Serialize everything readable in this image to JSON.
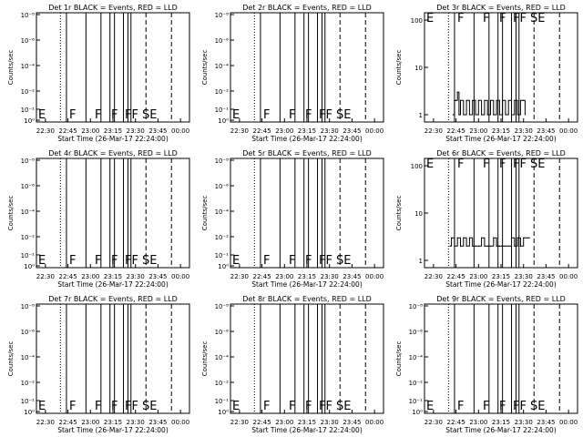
{
  "chart_data": [
    {
      "type": "line",
      "title": "Det 1r BLACK = Events, RED = LLD",
      "xlabel": "Start Time (26-Mar-17 22:24:00)",
      "ylabel": "Counts/sec",
      "yscale": "log",
      "ylim": [
        1,
        1e-08
      ],
      "ytick_labels": [
        "10⁻⁸",
        "10⁻⁶",
        "10⁻⁴",
        "10⁻²",
        "10⁻¹",
        "10⁰"
      ],
      "xtick_labels": [
        "22:30",
        "22:45",
        "23:00",
        "23:15",
        "23:30",
        "23:45",
        "00:00"
      ],
      "xlim": [
        "22:24",
        "00:06"
      ],
      "flag_labels": [
        "E",
        "F",
        "F",
        "F",
        "FF",
        "SE"
      ],
      "series": []
    },
    {
      "type": "line",
      "title": "Det 2r BLACK = Events, RED = LLD",
      "xlabel": "Start Time (26-Mar-17 22:24:00)",
      "ylabel": "Counts/sec",
      "yscale": "log",
      "ylim": [
        1,
        1e-08
      ],
      "ytick_labels": [
        "10⁻⁸",
        "10⁻⁶",
        "10⁻⁴",
        "10⁻²",
        "10⁻¹",
        "10⁰"
      ],
      "xtick_labels": [
        "22:30",
        "22:45",
        "23:00",
        "23:15",
        "23:30",
        "23:45",
        "00:00"
      ],
      "xlim": [
        "22:24",
        "00:06"
      ],
      "flag_labels": [
        "E",
        "F",
        "F",
        "F",
        "FF",
        "SE"
      ],
      "series": []
    },
    {
      "type": "line",
      "title": "Det 3r BLACK = Events, RED = LLD",
      "xlabel": "Start Time (26-Mar-17 22:24:00)",
      "ylabel": "Counts/sec",
      "yscale": "log",
      "ylim": [
        1,
        100
      ],
      "ytick_labels": [
        "100",
        "10",
        "1"
      ],
      "xtick_labels": [
        "22:30",
        "22:45",
        "23:00",
        "23:15",
        "23:30",
        "23:45",
        "00:00"
      ],
      "xlim": [
        "22:24",
        "00:06"
      ],
      "flag_labels": [
        "E",
        "F",
        "F",
        "F",
        "FF",
        "SE"
      ],
      "series": [
        {
          "kind": "events",
          "x": [
            "22:43",
            "22:44",
            "22:45",
            "22:46",
            "22:47",
            "22:48",
            "22:50",
            "22:52",
            "22:54",
            "22:56",
            "22:58",
            "23:00",
            "23:02",
            "23:04",
            "23:06",
            "23:08",
            "23:10",
            "23:12",
            "23:14",
            "23:16",
            "23:18",
            "23:20",
            "23:22",
            "23:24",
            "23:26",
            "23:28",
            "23:30",
            "23:31"
          ],
          "y": [
            1,
            2,
            2,
            3,
            1,
            2,
            1,
            2,
            1,
            2,
            1,
            2,
            1,
            2,
            1,
            2,
            1,
            2,
            1,
            2,
            1,
            2,
            1,
            2,
            1,
            2,
            2,
            1
          ]
        }
      ]
    },
    {
      "type": "line",
      "title": "Det 4r BLACK = Events, RED = LLD",
      "xlabel": "Start Time (26-Mar-17 22:24:00)",
      "ylabel": "Counts/sec",
      "yscale": "log",
      "ylim": [
        1,
        1e-08
      ],
      "ytick_labels": [
        "10⁻⁸",
        "10⁻⁶",
        "10⁻⁴",
        "10⁻²",
        "10⁻¹",
        "10⁰"
      ],
      "xtick_labels": [
        "22:30",
        "22:45",
        "23:00",
        "23:15",
        "23:30",
        "23:45",
        "00:00"
      ],
      "xlim": [
        "22:24",
        "00:06"
      ],
      "flag_labels": [
        "E",
        "F",
        "F",
        "F",
        "FF",
        "SE"
      ],
      "series": []
    },
    {
      "type": "line",
      "title": "Det 5r BLACK = Events, RED = LLD",
      "xlabel": "Start Time (26-Mar-17 22:24:00)",
      "ylabel": "Counts/sec",
      "yscale": "log",
      "ylim": [
        1,
        1e-08
      ],
      "ytick_labels": [
        "10⁻⁸",
        "10⁻⁶",
        "10⁻⁴",
        "10⁻²",
        "10⁻¹",
        "10⁰"
      ],
      "xtick_labels": [
        "22:30",
        "22:45",
        "23:00",
        "23:15",
        "23:30",
        "23:45",
        "00:00"
      ],
      "xlim": [
        "22:24",
        "00:06"
      ],
      "flag_labels": [
        "E",
        "F",
        "F",
        "F",
        "FF",
        "SE"
      ],
      "series": []
    },
    {
      "type": "line",
      "title": "Det 6r BLACK = Events, RED = LLD",
      "xlabel": "Start Time (26-Mar-17 22:24:00)",
      "ylabel": "Counts/sec",
      "yscale": "log",
      "ylim": [
        1,
        100
      ],
      "ytick_labels": [
        "100",
        "10",
        "1"
      ],
      "xtick_labels": [
        "22:30",
        "22:45",
        "23:00",
        "23:15",
        "23:30",
        "23:45",
        "00:00"
      ],
      "xlim": [
        "22:24",
        "00:06"
      ],
      "flag_labels": [
        "E",
        "F",
        "F",
        "F",
        "FF",
        "SE"
      ],
      "series": [
        {
          "kind": "events",
          "x": [
            "22:41",
            "22:42",
            "22:44",
            "22:46",
            "22:48",
            "22:50",
            "22:52",
            "22:54",
            "22:56",
            "22:58",
            "23:00",
            "23:02",
            "23:04",
            "23:06",
            "23:08",
            "23:10",
            "23:12",
            "23:14",
            "23:16",
            "23:18",
            "23:20",
            "23:22",
            "23:24",
            "23:26",
            "23:28",
            "23:30",
            "23:32",
            "23:34"
          ],
          "y": [
            2,
            3,
            2,
            3,
            2,
            3,
            2,
            3,
            2,
            2,
            2,
            3,
            2,
            2,
            2,
            3,
            2,
            2,
            2,
            2,
            2,
            3,
            2,
            3,
            2,
            3,
            3,
            3
          ]
        }
      ]
    },
    {
      "type": "line",
      "title": "Det 7r BLACK = Events, RED = LLD",
      "xlabel": "Start Time (26-Mar-17 22:24:00)",
      "ylabel": "Counts/sec",
      "yscale": "log",
      "ylim": [
        1,
        1e-08
      ],
      "ytick_labels": [
        "10⁻⁸",
        "10⁻⁶",
        "10⁻⁴",
        "10⁻²",
        "10⁻¹",
        "10⁰"
      ],
      "xtick_labels": [
        "22:30",
        "22:45",
        "23:00",
        "23:15",
        "23:30",
        "23:45",
        "00:00"
      ],
      "xlim": [
        "22:24",
        "00:06"
      ],
      "flag_labels": [
        "E",
        "F",
        "F",
        "F",
        "FF",
        "SE"
      ],
      "series": []
    },
    {
      "type": "line",
      "title": "Det 8r BLACK = Events, RED = LLD",
      "xlabel": "Start Time (26-Mar-17 22:24:00)",
      "ylabel": "Counts/sec",
      "yscale": "log",
      "ylim": [
        1,
        1e-08
      ],
      "ytick_labels": [
        "10⁻⁸",
        "10⁻⁶",
        "10⁻⁴",
        "10⁻²",
        "10⁻¹",
        "10⁰"
      ],
      "xtick_labels": [
        "22:30",
        "22:45",
        "23:00",
        "23:15",
        "23:30",
        "23:45",
        "00:00"
      ],
      "xlim": [
        "22:24",
        "00:06"
      ],
      "flag_labels": [
        "E",
        "F",
        "F",
        "F",
        "FF",
        "SE"
      ],
      "series": []
    },
    {
      "type": "line",
      "title": "Det 9r BLACK = Events, RED = LLD",
      "xlabel": "Start Time (26-Mar-17 22:24:00)",
      "ylabel": "Counts/sec",
      "yscale": "log",
      "ylim": [
        1,
        1e-08
      ],
      "ytick_labels": [
        "10⁻⁸",
        "10⁻⁶",
        "10⁻⁴",
        "10⁻²",
        "10⁻¹",
        "10⁰"
      ],
      "xtick_labels": [
        "22:30",
        "22:45",
        "23:00",
        "23:15",
        "23:30",
        "23:45",
        "00:00"
      ],
      "xlim": [
        "22:24",
        "00:06"
      ],
      "flag_labels": [
        "E",
        "F",
        "F",
        "F",
        "FF",
        "SE"
      ],
      "series": []
    }
  ],
  "colors": {
    "events": "#000000",
    "lld": "#ff0000",
    "axis": "#000000",
    "background": "#ffffff"
  }
}
